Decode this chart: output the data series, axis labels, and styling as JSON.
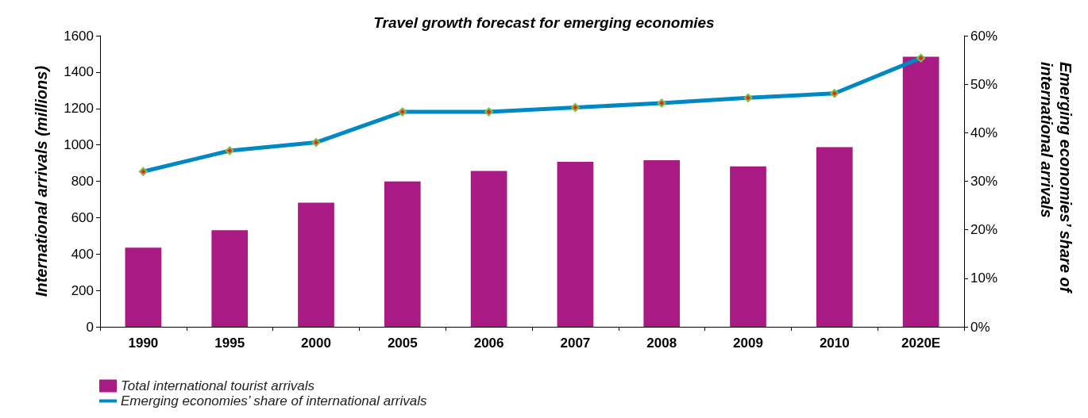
{
  "chart_data": {
    "type": "bar",
    "title": "Travel growth forecast for emerging economies",
    "ylabel": "International arrivals (millions)",
    "y2label": "Emerging economies’ share of international arrivals",
    "categories": [
      "1990",
      "1995",
      "2000",
      "2005",
      "2006",
      "2007",
      "2008",
      "2009",
      "2010",
      "2020E"
    ],
    "series": [
      {
        "name": "Total international tourist arrivals",
        "color": "#a91a84",
        "values": [
          435,
          531,
          682,
          799,
          857,
          907,
          916,
          882,
          987,
          1485
        ]
      },
      {
        "name": "Emerging economies’ share of international arrivals",
        "type": "line",
        "axis": "y2",
        "color": "#0088c2",
        "marker": "diamond",
        "values": [
          32,
          36.3,
          38,
          44.3,
          44.3,
          45.2,
          46.1,
          47.2,
          48.1,
          55.4
        ]
      }
    ],
    "ylim": [
      0,
      1600
    ],
    "yticks": [
      0,
      200,
      400,
      600,
      800,
      1000,
      1200,
      1400,
      1600
    ],
    "y2lim": [
      0,
      60
    ],
    "y2ticks": [
      {
        "value": 0,
        "label": "0%"
      },
      {
        "value": 10,
        "label": "10%"
      },
      {
        "value": 20,
        "label": "20%"
      },
      {
        "value": 30,
        "label": "30%"
      },
      {
        "value": 40,
        "label": "40%"
      },
      {
        "value": 50,
        "label": "50%"
      },
      {
        "value": 60,
        "label": "60%"
      }
    ],
    "grid": false,
    "legend": "bottom left"
  }
}
